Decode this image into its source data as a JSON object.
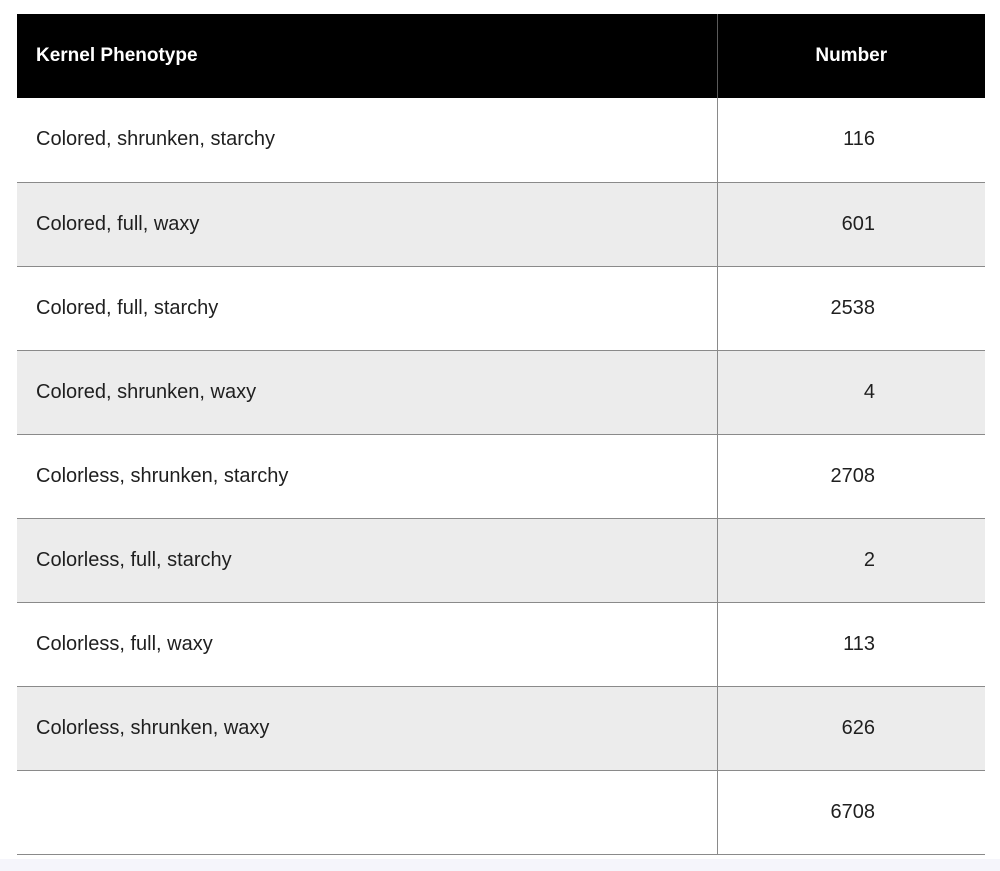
{
  "table": {
    "headers": {
      "phenotype": "Kernel Phenotype",
      "number": "Number"
    },
    "rows": [
      {
        "phenotype": "Colored, shrunken, starchy",
        "number": "116"
      },
      {
        "phenotype": "Colored, full, waxy",
        "number": "601"
      },
      {
        "phenotype": "Colored, full, starchy",
        "number": "2538"
      },
      {
        "phenotype": "Colored, shrunken, waxy",
        "number": "4"
      },
      {
        "phenotype": "Colorless, shrunken, starchy",
        "number": "2708"
      },
      {
        "phenotype": "Colorless, full, starchy",
        "number": "2"
      },
      {
        "phenotype": "Colorless, full, waxy",
        "number": "113"
      },
      {
        "phenotype": "Colorless, shrunken, waxy",
        "number": "626"
      },
      {
        "phenotype": "",
        "number": "6708"
      }
    ]
  }
}
